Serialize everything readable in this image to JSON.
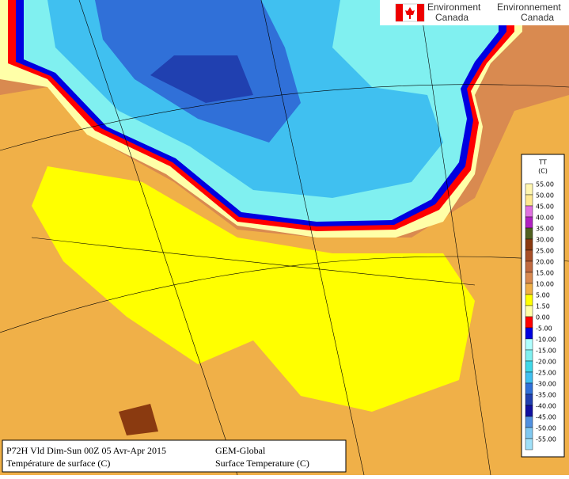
{
  "logo": {
    "english": [
      "Environment",
      "Canada"
    ],
    "french": [
      "Environnement",
      "Canada"
    ]
  },
  "legend": {
    "title": "TT",
    "unit": "(C)",
    "entries": [
      {
        "label": "55.00",
        "color": "#fff6b0"
      },
      {
        "label": "50.00",
        "color": "#ffe890"
      },
      {
        "label": "45.00",
        "color": "#e070e0"
      },
      {
        "label": "40.00",
        "color": "#b020c0"
      },
      {
        "label": "35.00",
        "color": "#506020"
      },
      {
        "label": "30.00",
        "color": "#8a3a10"
      },
      {
        "label": "25.00",
        "color": "#a85028"
      },
      {
        "label": "20.00",
        "color": "#c06a40"
      },
      {
        "label": "15.00",
        "color": "#d98a50"
      },
      {
        "label": "10.00",
        "color": "#f0b048"
      },
      {
        "label": "5.00",
        "color": "#ffff00"
      },
      {
        "label": "1.50",
        "color": "#ffffa8"
      },
      {
        "label": "0.00",
        "color": "#ff0000"
      },
      {
        "label": "-5.00",
        "color": "#0000e0"
      },
      {
        "label": "-10.00",
        "color": "#b0ffff"
      },
      {
        "label": "-15.00",
        "color": "#80f0f0"
      },
      {
        "label": "-20.00",
        "color": "#40d8e8"
      },
      {
        "label": "-25.00",
        "color": "#40c0f0"
      },
      {
        "label": "-30.00",
        "color": "#3070d8"
      },
      {
        "label": "-35.00",
        "color": "#2040b0"
      },
      {
        "label": "-40.00",
        "color": "#1010a0"
      },
      {
        "label": "-45.00",
        "color": "#5090e0"
      },
      {
        "label": "-50.00",
        "color": "#80c8f0"
      },
      {
        "label": "-55.00",
        "color": "#a0e0f8"
      }
    ]
  },
  "caption": {
    "line1": "P72H Vld Dim-Sun 00Z 05 Avr-Apr 2015",
    "model": "GEM-Global",
    "line2_fr": "Température de surface (C)",
    "line2_en": "Surface Temperature (C)"
  }
}
